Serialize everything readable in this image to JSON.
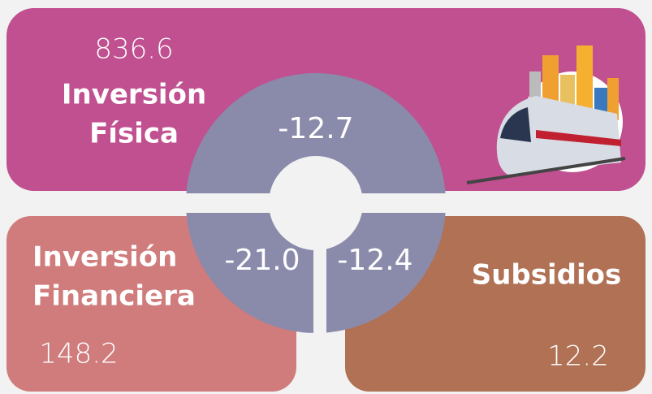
{
  "cards": [
    {
      "value": "836.6",
      "label_lines": [
        "Inversión",
        "Física"
      ],
      "change": "-12.7"
    },
    {
      "value": "148.2",
      "label_lines": [
        "Inversión",
        "Financiera"
      ],
      "change": "-21.0"
    },
    {
      "value": "12.2",
      "label_lines": [
        "Subsidios"
      ],
      "change": "-12.4"
    }
  ]
}
